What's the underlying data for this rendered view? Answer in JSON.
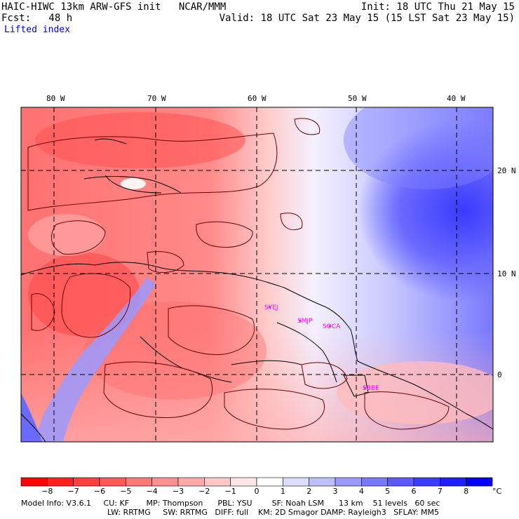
{
  "header": {
    "title": "HAIC-HIWC 13km ARW-GFS init   NCAR/MMM",
    "fcst": "Fcst:   48 h",
    "field": "Lifted index",
    "init": "Init: 18 UTC Thu 21 May 15",
    "valid": "Valid: 18 UTC Sat 23 May 15 (15 LST Sat 23 May 15)"
  },
  "map": {
    "lon_labels": [
      "80 W",
      "70 W",
      "60 W",
      "50 W",
      "40 W"
    ],
    "lat_labels": [
      "20 N",
      "10 N",
      "0"
    ],
    "stations": [
      "SYEJ",
      "SMJP",
      "SOCA",
      "SBBE"
    ],
    "colors": {
      "station": "#ff00ff",
      "contour": "#6b0000",
      "coast": "#000000"
    }
  },
  "colorbar": {
    "ticks": [
      "−8",
      "−7",
      "−6",
      "−5",
      "−4",
      "−3",
      "−2",
      "−1",
      "0",
      "1",
      "2",
      "3",
      "4",
      "5",
      "6",
      "7",
      "8"
    ],
    "unit": "°C",
    "colors": [
      "#ff0000",
      "#ff2020",
      "#ff4040",
      "#ff5a5a",
      "#ff7878",
      "#ff9090",
      "#ffaaaa",
      "#ffc8c8",
      "#ffe6e6",
      "#ffffff",
      "#dcdcff",
      "#bebeff",
      "#9a9aff",
      "#7878ff",
      "#5a5aff",
      "#3c3cff",
      "#1e1eff",
      "#0000ff"
    ]
  },
  "model_info": {
    "line1": "Model Info: V3.6.1     CU: KF       MP: Thompson      PBL: YSU        SF: Noah LSM      13 km    51 levels   60 sec",
    "line2": "LW: RRTMG     SW: RRTMG   DIFF: full    KM: 2D Smagor DAMP: Rayleigh3   SFLAY: MM5"
  }
}
